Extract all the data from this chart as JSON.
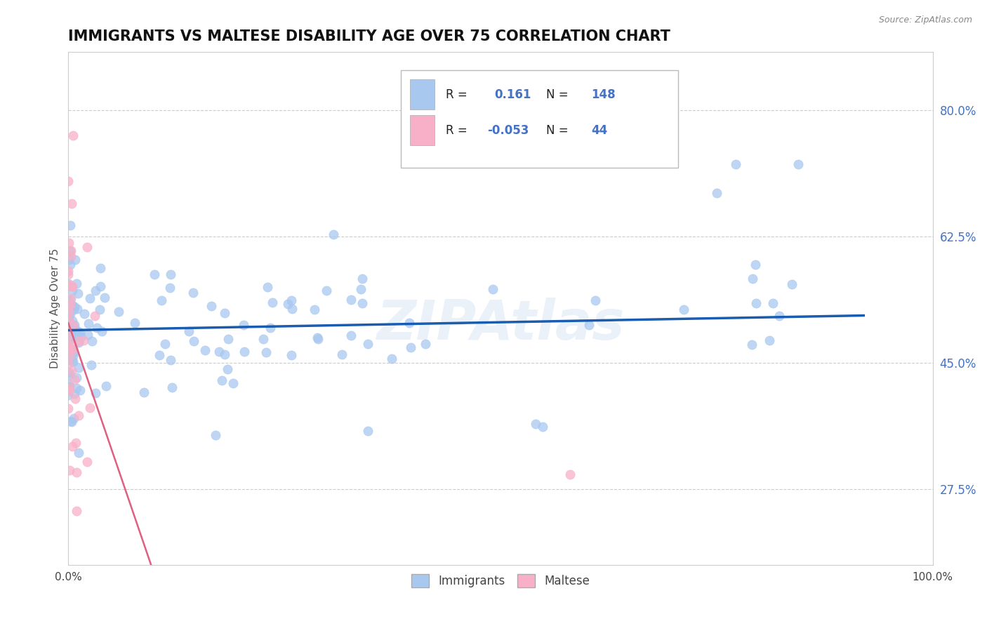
{
  "title": "IMMIGRANTS VS MALTESE DISABILITY AGE OVER 75 CORRELATION CHART",
  "source": "Source: ZipAtlas.com",
  "ylabel": "Disability Age Over 75",
  "xlim": [
    0.0,
    1.0
  ],
  "ylim": [
    0.17,
    0.88
  ],
  "yticks": [
    0.275,
    0.45,
    0.625,
    0.8
  ],
  "ytick_labels": [
    "27.5%",
    "45.0%",
    "62.5%",
    "80.0%"
  ],
  "xticks": [
    0.0,
    0.25,
    0.5,
    0.75,
    1.0
  ],
  "xtick_labels": [
    "0.0%",
    "",
    "",
    "",
    "100.0%"
  ],
  "immigrants_color": "#a8c8f0",
  "maltese_color": "#f8b0c8",
  "immigrants_line_color": "#1a5cb0",
  "maltese_solid_color": "#e06080",
  "maltese_dash_color": "#f0a0b8",
  "immigrants_R": 0.161,
  "immigrants_N": 148,
  "maltese_R": -0.053,
  "maltese_N": 44,
  "background_color": "#ffffff",
  "grid_color": "#cccccc",
  "watermark": "ZIPAtlas",
  "legend_color": "#4472c4",
  "title_fontsize": 15,
  "axis_label_fontsize": 11
}
